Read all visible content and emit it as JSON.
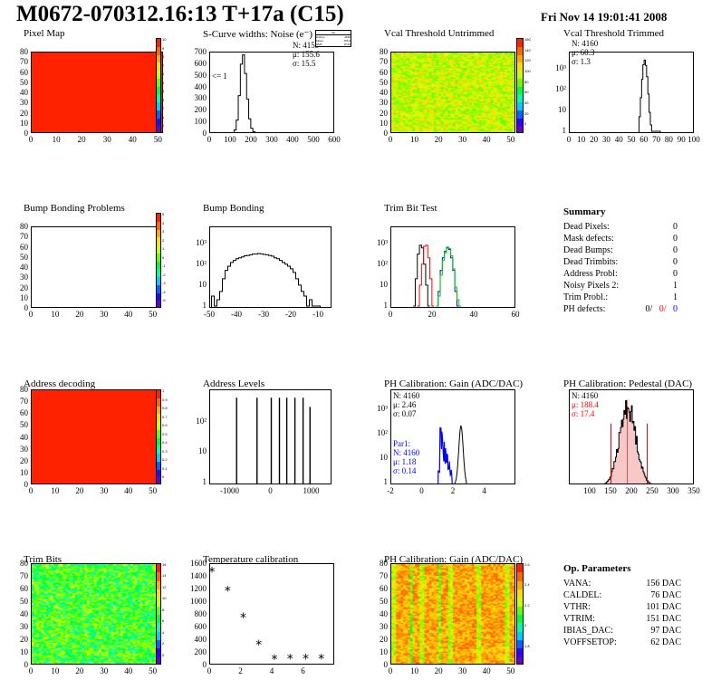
{
  "header": {
    "title": "M0672-070312.16:13 T+17a (C15)",
    "date": "Fri Nov 14 19:01:41 2008"
  },
  "palette": [
    "#6600cc",
    "#3300ff",
    "#0066ff",
    "#00ccff",
    "#00ffaa",
    "#00ff33",
    "#66ff00",
    "#ccff00",
    "#ffdd00",
    "#ffaa00",
    "#ff6600",
    "#ff2200"
  ],
  "chart_data": [
    {
      "name": "pixel-map",
      "type": "heatmap",
      "title": "Pixel Map",
      "xlim": [
        0,
        52
      ],
      "ylim": [
        0,
        80
      ],
      "xticks": [
        "0",
        "10",
        "20",
        "30",
        "40",
        "50"
      ],
      "yticks": [
        "0",
        "10",
        "20",
        "30",
        "40",
        "50",
        "60",
        "70",
        "80"
      ],
      "palette_labels": [
        "10",
        "9",
        "8",
        "7",
        "6",
        "5",
        "4",
        "3",
        "2",
        "1",
        "0"
      ],
      "uniform_value": 10
    },
    {
      "name": "scurve-widths",
      "type": "bar",
      "title": "S-Curve widths: Noise (e⁻)",
      "xlim": [
        0,
        600
      ],
      "ylim": [
        0,
        700
      ],
      "xticks": [
        "0",
        "100",
        "200",
        "300",
        "400",
        "500",
        "600"
      ],
      "yticks": [
        "0",
        "100",
        "200",
        "300",
        "400",
        "500",
        "600",
        "700"
      ],
      "x": [
        100,
        110,
        120,
        130,
        140,
        150,
        160,
        170,
        180,
        190,
        200,
        210,
        220,
        230,
        240,
        250,
        260
      ],
      "values": [
        2,
        8,
        35,
        120,
        330,
        600,
        680,
        520,
        300,
        130,
        50,
        20,
        8,
        3,
        1,
        0,
        0
      ],
      "stats": [
        "N: 4159",
        "μ: 155.6",
        "σ: 15.5"
      ],
      "annotation": "<= 1",
      "statbox": {
        "title": "hw",
        "rows": [
          "Entries",
          "Mean",
          "RMS"
        ],
        "values": [
          "4160",
          "155.6",
          "15.54"
        ]
      }
    },
    {
      "name": "vcal-untrimmed",
      "type": "heatmap",
      "title": "Vcal Threshold Untrimmed",
      "xlim": [
        0,
        52
      ],
      "ylim": [
        0,
        80
      ],
      "xticks": [
        "0",
        "10",
        "20",
        "30",
        "40",
        "50"
      ],
      "yticks": [
        "0",
        "10",
        "20",
        "30",
        "40",
        "50",
        "60",
        "70",
        "80"
      ],
      "palette_labels": [
        "160",
        "140",
        "120",
        "100",
        "80",
        "60",
        "40",
        "20",
        "0"
      ]
    },
    {
      "name": "vcal-trimmed",
      "type": "bar",
      "title": "Vcal Threshold Trimmed",
      "log": true,
      "xlim": [
        0,
        100
      ],
      "xticks": [
        "0",
        "10",
        "20",
        "30",
        "40",
        "50",
        "60",
        "70",
        "80",
        "90",
        "100"
      ],
      "yticks": [
        "1",
        "10",
        "10²",
        "10³"
      ],
      "x": [
        56,
        57,
        58,
        59,
        60,
        61,
        62,
        63,
        64,
        65,
        66,
        72
      ],
      "values": [
        5,
        40,
        300,
        1500,
        2500,
        1400,
        400,
        60,
        8,
        2,
        1,
        1
      ],
      "stats": [
        "N: 4160",
        "μ: 60.3",
        "σ:  1.3"
      ]
    },
    {
      "name": "bump-problems",
      "type": "heatmap",
      "title": "Bump Bonding Problems",
      "xlim": [
        0,
        52
      ],
      "ylim": [
        0,
        80
      ],
      "xticks": [
        "0",
        "10",
        "20",
        "30",
        "40",
        "50"
      ],
      "yticks": [
        "0",
        "10",
        "20",
        "30",
        "40",
        "50",
        "60",
        "70",
        "80"
      ],
      "palette_labels": [
        "5",
        "4",
        "3",
        "2",
        "1",
        "0",
        "-1",
        "-2",
        "-3",
        "-4",
        "-5"
      ]
    },
    {
      "name": "bump-bonding",
      "type": "bar",
      "title": "Bump Bonding",
      "log": true,
      "xlim": [
        -50,
        -5
      ],
      "xticks": [
        "-50",
        "-40",
        "-30",
        "-20",
        "-10"
      ],
      "yticks": [
        "1",
        "10",
        "10²",
        "10³"
      ],
      "x": [
        -49,
        -48,
        -47,
        -46,
        -45,
        -44,
        -43,
        -42,
        -41,
        -40,
        -39,
        -38,
        -37,
        -36,
        -35,
        -34,
        -33,
        -32,
        -31,
        -30,
        -29,
        -28,
        -27,
        -26,
        -25,
        -24,
        -23,
        -22,
        -21,
        -20,
        -19,
        -18,
        -17,
        -16,
        -15,
        -14,
        -13,
        -12,
        -11,
        -10
      ],
      "values": [
        3,
        1,
        2,
        5,
        20,
        50,
        80,
        120,
        150,
        180,
        200,
        220,
        250,
        260,
        280,
        300,
        300,
        320,
        310,
        290,
        280,
        260,
        240,
        200,
        180,
        150,
        120,
        100,
        80,
        60,
        40,
        20,
        10,
        5,
        3,
        1,
        2,
        1,
        1,
        1
      ]
    },
    {
      "name": "trim-bit-test",
      "type": "line",
      "title": "Trim Bit Test",
      "log": true,
      "xlim": [
        0,
        60
      ],
      "xticks": [
        "0",
        "20",
        "40",
        "60"
      ],
      "yticks": [
        "1",
        "10",
        "10²",
        "10³"
      ],
      "series": [
        {
          "color": "#000000",
          "x": [
            11,
            12,
            13,
            14,
            15,
            16,
            17,
            18
          ],
          "values": [
            1,
            20,
            300,
            800,
            600,
            100,
            10,
            1
          ]
        },
        {
          "color": "#ff0000",
          "x": [
            13,
            14,
            15,
            16,
            17,
            18,
            19,
            20
          ],
          "values": [
            1,
            10,
            100,
            700,
            800,
            200,
            20,
            1
          ]
        },
        {
          "color": "#0000ff",
          "x": [
            22,
            23,
            24,
            25,
            26,
            27,
            28,
            29,
            30,
            31,
            32
          ],
          "values": [
            1,
            5,
            50,
            200,
            400,
            600,
            500,
            200,
            50,
            5,
            1
          ]
        },
        {
          "color": "#00cc00",
          "x": [
            22,
            23,
            24,
            25,
            26,
            27,
            28,
            29,
            30,
            31,
            32,
            33
          ],
          "values": [
            1,
            3,
            30,
            150,
            350,
            650,
            550,
            250,
            60,
            8,
            2,
            1
          ]
        }
      ]
    },
    {
      "name": "address-decoding",
      "type": "heatmap",
      "title": "Address decoding",
      "xlim": [
        0,
        52
      ],
      "ylim": [
        0,
        80
      ],
      "xticks": [
        "0",
        "10",
        "20",
        "30",
        "40",
        "50"
      ],
      "yticks": [
        "0",
        "10",
        "20",
        "30",
        "40",
        "50",
        "60",
        "70",
        "80"
      ],
      "palette_labels": [
        "1",
        "0.9",
        "0.8",
        "0.7",
        "0.6",
        "0.5",
        "0.4",
        "0.3",
        "0.2",
        "0.1",
        "0"
      ],
      "uniform_value": 1
    },
    {
      "name": "address-levels",
      "type": "bar",
      "title": "Address Levels",
      "log": true,
      "xlim": [
        -1500,
        1500
      ],
      "xticks": [
        "-1000",
        "0",
        "1000"
      ],
      "yticks": [
        "1",
        "10",
        "10²"
      ],
      "x": [
        -850,
        -350,
        0,
        200,
        380,
        580,
        780,
        950
      ],
      "values": [
        600,
        600,
        600,
        600,
        600,
        600,
        600,
        300
      ]
    },
    {
      "name": "ph-gain",
      "type": "bar",
      "title": "PH Calibration: Gain (ADC/DAC)",
      "log": true,
      "xlim": [
        -2,
        6
      ],
      "xticks": [
        "-2",
        "0",
        "2",
        "4"
      ],
      "yticks": [
        "1",
        "10",
        "10²",
        "10³"
      ],
      "stats": [
        "N: 4160",
        "μ: 2.46",
        "σ: 0.07"
      ],
      "stats2": [
        "Par1:",
        "N: 4160",
        "μ: 1.18",
        "σ: 0.14"
      ]
    },
    {
      "name": "ph-pedestal",
      "type": "bar",
      "title": "PH Calibration: Pedestal (DAC)",
      "xlim": [
        50,
        350
      ],
      "xticks": [
        "100",
        "150",
        "200",
        "250",
        "300",
        "350"
      ],
      "stats": [
        "N: 4160",
        "μ: 188.4",
        "σ: 17.4"
      ]
    },
    {
      "name": "trim-bits",
      "type": "heatmap",
      "title": "Trim Bits",
      "xlim": [
        0,
        52
      ],
      "ylim": [
        0,
        80
      ],
      "xticks": [
        "0",
        "10",
        "20",
        "30",
        "40",
        "50"
      ],
      "yticks": [
        "0",
        "10",
        "20",
        "30",
        "40",
        "50",
        "60",
        "70",
        "80"
      ],
      "palette_labels": [
        "16",
        "14",
        "12",
        "10",
        "8",
        "6",
        "4",
        "2",
        "0"
      ]
    },
    {
      "name": "temperature-calibration",
      "type": "scatter",
      "title": "Temperature calibration",
      "xlim": [
        0,
        8
      ],
      "ylim": [
        0,
        1600
      ],
      "xticks": [
        "0",
        "2",
        "4",
        "6"
      ],
      "yticks": [
        "0",
        "200",
        "400",
        "600",
        "800",
        "1000",
        "1200",
        "1400",
        "1600"
      ],
      "x": [
        0,
        1,
        2,
        3,
        4,
        5,
        6,
        7
      ],
      "values": [
        1480,
        1180,
        760,
        330,
        100,
        110,
        110,
        110
      ]
    },
    {
      "name": "ph-gain-map",
      "type": "heatmap",
      "title": "PH Calibration: Gain (ADC/DAC)",
      "xlim": [
        0,
        52
      ],
      "ylim": [
        0,
        80
      ],
      "xticks": [
        "0",
        "10",
        "20",
        "30",
        "40",
        "50"
      ],
      "yticks": [
        "0",
        "10",
        "20",
        "30",
        "40",
        "50",
        "60",
        "70",
        "80"
      ],
      "palette_labels": [
        "2.6",
        "2.4",
        "2.2",
        "2",
        "1.8"
      ]
    }
  ],
  "summary": {
    "title": "Summary",
    "rows": [
      {
        "label": "Dead Pixels:",
        "value": "0"
      },
      {
        "label": "Mask defects:",
        "value": "0"
      },
      {
        "label": "Dead Bumps:",
        "value": "0"
      },
      {
        "label": "Dead Trimbits:",
        "value": "0"
      },
      {
        "label": "Address Probl:",
        "value": "0"
      },
      {
        "label": "Noisy Pixels 2:",
        "value": "1"
      },
      {
        "label": "Trim Probl.:",
        "value": "1"
      }
    ],
    "ph_label": "PH defects:",
    "ph_values": [
      "0/",
      "0/",
      "0"
    ]
  },
  "op_parameters": {
    "title": "Op. Parameters",
    "rows": [
      {
        "label": "VANA:",
        "value": "156 DAC"
      },
      {
        "label": "CALDEL:",
        "value": "76 DAC"
      },
      {
        "label": "VTHR:",
        "value": "101 DAC"
      },
      {
        "label": "VTRIM:",
        "value": "151 DAC"
      },
      {
        "label": "IBIAS_DAC:",
        "value": "97 DAC"
      },
      {
        "label": "VOFFSETOP:",
        "value": "62 DAC"
      }
    ]
  }
}
